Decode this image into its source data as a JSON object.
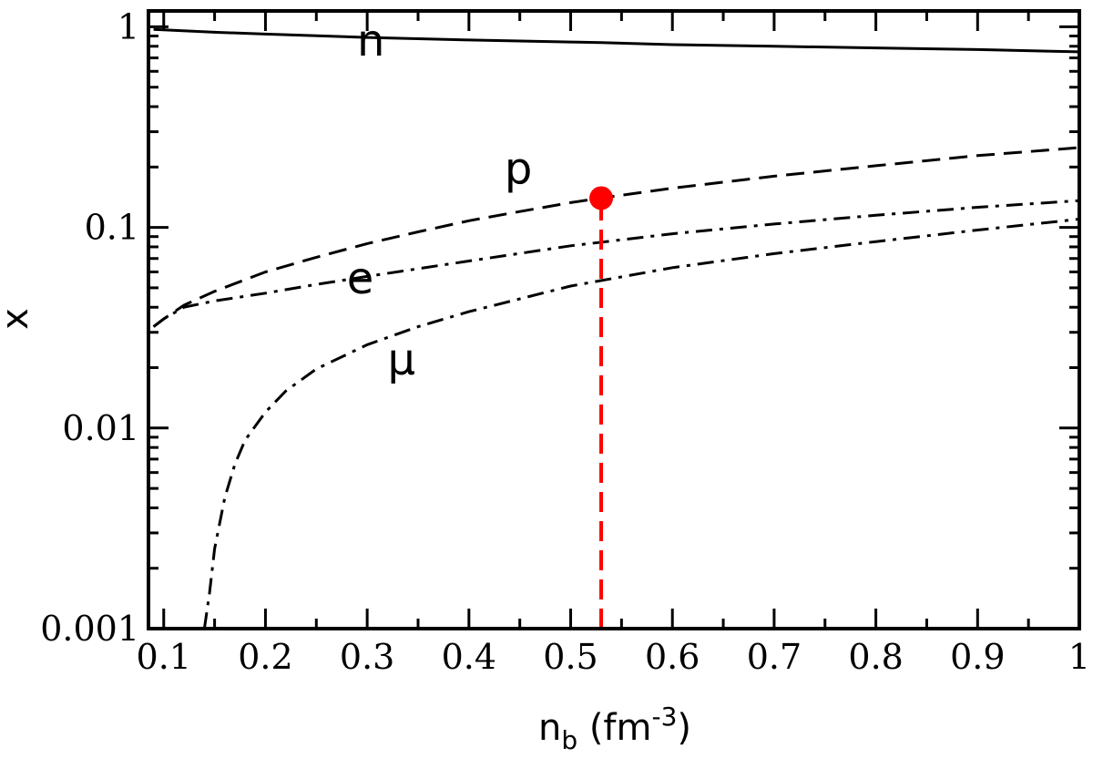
{
  "chart_data": {
    "type": "line",
    "title": "",
    "xlabel": "n",
    "xlabel_sub": "b",
    "xlabel_unit_open": " (fm",
    "xlabel_unit_exp": "-3",
    "xlabel_unit_close": ")",
    "ylabel": "x",
    "xlim": [
      0.085,
      1.0
    ],
    "ylim": [
      0.001,
      1.2
    ],
    "y_scale": "log",
    "x_ticks": [
      0.1,
      0.2,
      0.3,
      0.4,
      0.5,
      0.6,
      0.7,
      0.8,
      0.9,
      1
    ],
    "x_tick_labels": [
      "0.1",
      "0.2",
      "0.3",
      "0.4",
      "0.5",
      "0.6",
      "0.7",
      "0.8",
      "0.9",
      "1"
    ],
    "y_ticks": [
      0.001,
      0.01,
      0.1,
      1
    ],
    "y_tick_labels": [
      "0.001",
      "0.01",
      "0.1",
      "1"
    ],
    "grid": false,
    "legend": "none",
    "series": [
      {
        "name": "n",
        "style": "solid",
        "color": "#000000",
        "x": [
          0.09,
          0.15,
          0.2,
          0.3,
          0.4,
          0.5,
          0.53,
          0.6,
          0.7,
          0.8,
          0.9,
          1.0
        ],
        "y": [
          0.97,
          0.94,
          0.92,
          0.885,
          0.86,
          0.84,
          0.835,
          0.815,
          0.8,
          0.785,
          0.77,
          0.75
        ]
      },
      {
        "name": "p",
        "style": "dashed",
        "color": "#000000",
        "x": [
          0.09,
          0.1,
          0.12,
          0.15,
          0.2,
          0.25,
          0.3,
          0.35,
          0.4,
          0.45,
          0.5,
          0.53,
          0.6,
          0.7,
          0.8,
          0.9,
          1.0
        ],
        "y": [
          0.032,
          0.035,
          0.041,
          0.048,
          0.06,
          0.071,
          0.083,
          0.095,
          0.108,
          0.12,
          0.133,
          0.14,
          0.157,
          0.18,
          0.203,
          0.228,
          0.25
        ]
      },
      {
        "name": "e",
        "style": "dashdot",
        "color": "#000000",
        "x": [
          0.09,
          0.1,
          0.12,
          0.15,
          0.2,
          0.25,
          0.3,
          0.4,
          0.5,
          0.6,
          0.7,
          0.8,
          0.9,
          1.0
        ],
        "y": [
          0.032,
          0.035,
          0.04,
          0.043,
          0.047,
          0.052,
          0.057,
          0.068,
          0.081,
          0.093,
          0.104,
          0.115,
          0.126,
          0.136
        ]
      },
      {
        "name": "μ",
        "style": "dashdot",
        "color": "#000000",
        "x": [
          0.14,
          0.145,
          0.15,
          0.16,
          0.17,
          0.18,
          0.2,
          0.22,
          0.25,
          0.3,
          0.35,
          0.4,
          0.5,
          0.6,
          0.7,
          0.8,
          0.9,
          1.0
        ],
        "y": [
          0.001,
          0.0015,
          0.0025,
          0.0045,
          0.0066,
          0.0087,
          0.012,
          0.0153,
          0.0197,
          0.026,
          0.032,
          0.038,
          0.051,
          0.063,
          0.074,
          0.085,
          0.097,
          0.11
        ]
      }
    ],
    "marker": {
      "x": 0.53,
      "y": 0.14,
      "color": "#ff0000"
    },
    "vertical_line": {
      "x": 0.53,
      "y_from": 0.001,
      "y_to": 0.14,
      "style": "dashed",
      "color": "#ff0000"
    }
  }
}
